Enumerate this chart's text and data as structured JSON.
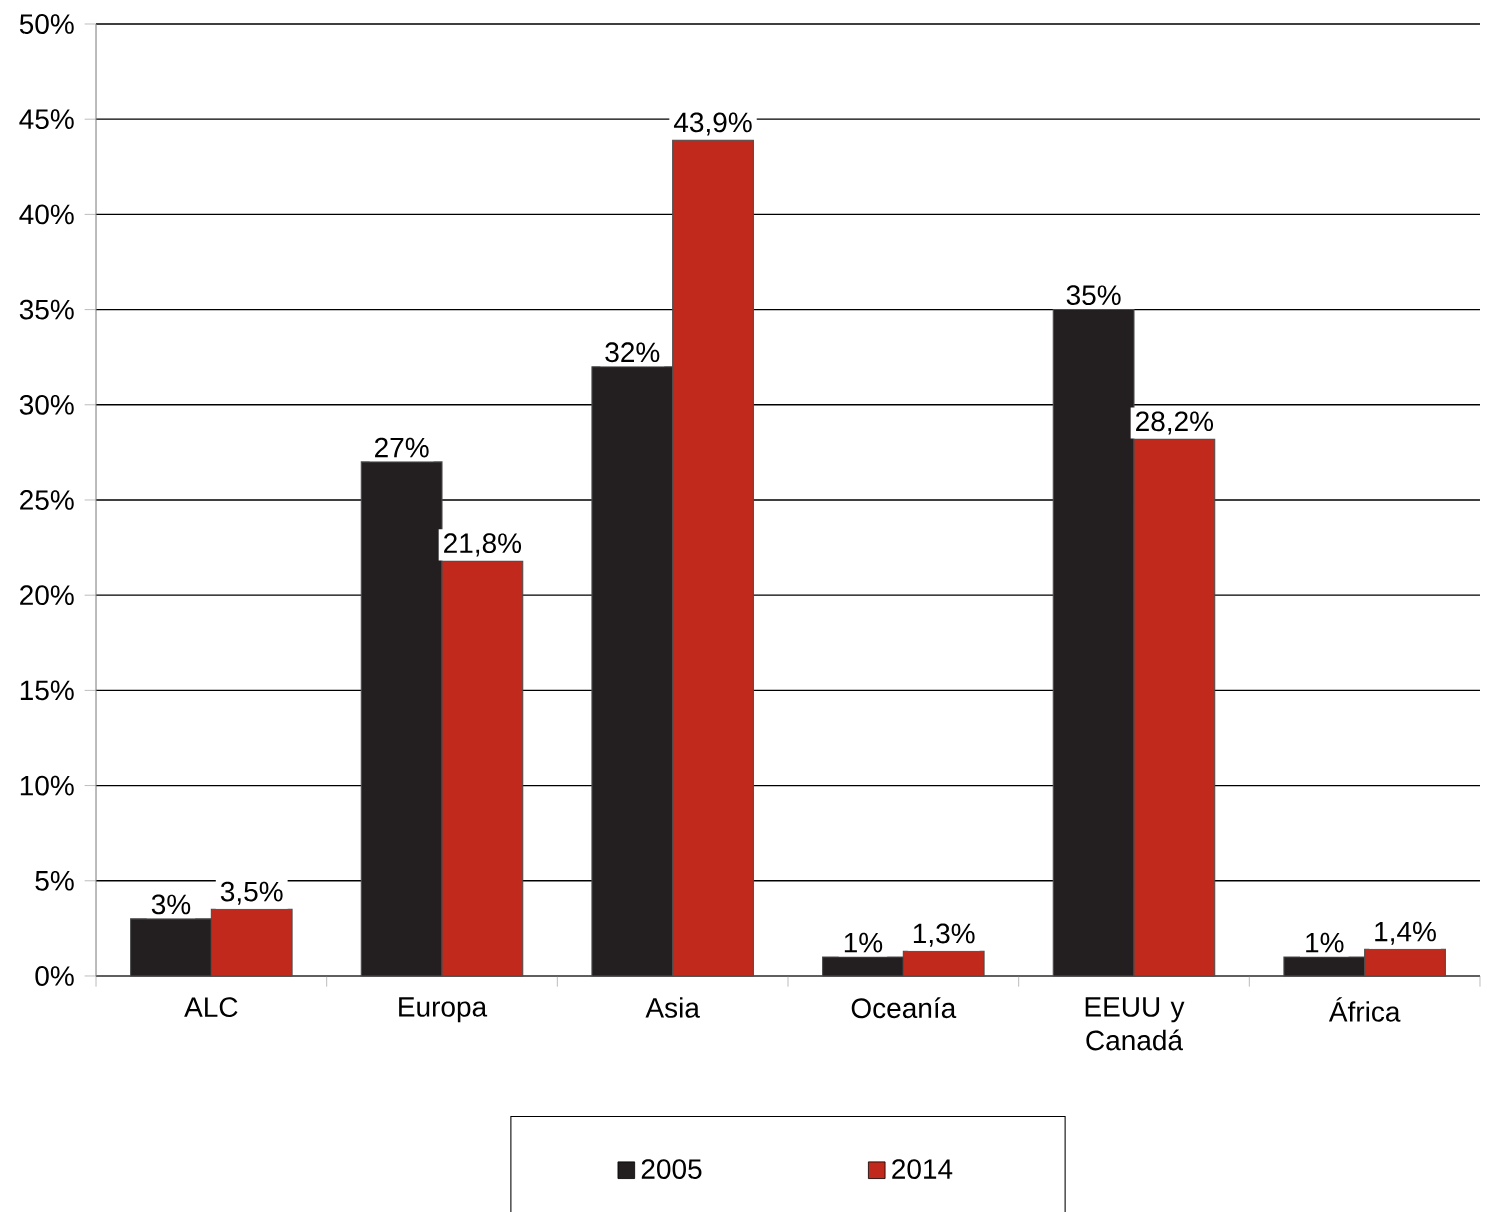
{
  "chart_data": {
    "type": "bar",
    "categories": [
      "ALC",
      "Europa",
      "Asia",
      "Oceanía",
      "EEUU y Canadá",
      "África"
    ],
    "series": [
      {
        "name": "2005",
        "color": "#231f20",
        "values": [
          3,
          27,
          32,
          1,
          35,
          1
        ],
        "value_labels": [
          "3%",
          "27%",
          "32%",
          "1%",
          "35%",
          "1%"
        ]
      },
      {
        "name": "2014",
        "color": "#c0291b",
        "values": [
          3.5,
          21.8,
          43.9,
          1.3,
          28.2,
          1.4
        ],
        "value_labels": [
          "3,5%",
          "21,8%",
          "43,9%",
          "1,3%",
          "28,2%",
          "1,4%"
        ]
      }
    ],
    "ylim": [
      0,
      50
    ],
    "yticks": [
      {
        "value": 0,
        "label": "0%"
      },
      {
        "value": 5,
        "label": "5%"
      },
      {
        "value": 10,
        "label": "10%"
      },
      {
        "value": 15,
        "label": "15%"
      },
      {
        "value": 20,
        "label": "20%"
      },
      {
        "value": 25,
        "label": "25%"
      },
      {
        "value": 30,
        "label": "30%"
      },
      {
        "value": 35,
        "label": "35%"
      },
      {
        "value": 40,
        "label": "40%"
      },
      {
        "value": 45,
        "label": "45%"
      },
      {
        "value": 50,
        "label": "50%"
      }
    ],
    "grid": "y",
    "legend": "bottom"
  }
}
